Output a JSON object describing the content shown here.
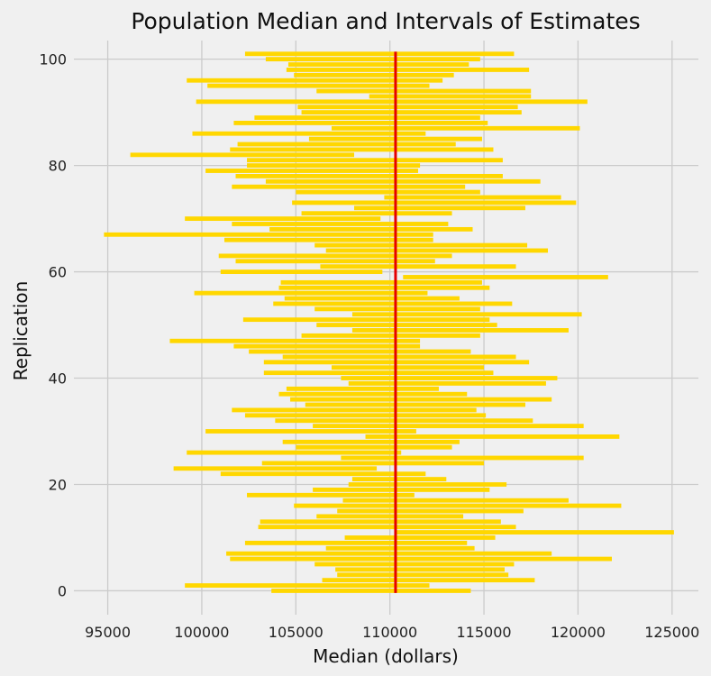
{
  "chart_data": {
    "type": "interval",
    "title": "Population Median and Intervals of Estimates",
    "xlabel": "Median (dollars)",
    "ylabel": "Replication",
    "xlim": [
      93200,
      126400
    ],
    "ylim": [
      -4.5,
      103.5
    ],
    "xticks": [
      95000,
      100000,
      105000,
      110000,
      115000,
      120000,
      125000
    ],
    "yticks": [
      0,
      20,
      40,
      60,
      80,
      100
    ],
    "grid": true,
    "population_median": 110300,
    "bar_color": "#ffd700",
    "line_color": "#e50000",
    "intervals": [
      [
        103700,
        114300
      ],
      [
        99100,
        112100
      ],
      [
        106400,
        117700
      ],
      [
        107200,
        116300
      ],
      [
        107100,
        116100
      ],
      [
        106000,
        116600
      ],
      [
        101500,
        121800
      ],
      [
        101300,
        118600
      ],
      [
        106600,
        114500
      ],
      [
        102300,
        114100
      ],
      [
        107600,
        115600
      ],
      [
        110300,
        125100
      ],
      [
        103000,
        116700
      ],
      [
        103100,
        115900
      ],
      [
        106100,
        113900
      ],
      [
        107200,
        117100
      ],
      [
        104900,
        122300
      ],
      [
        107500,
        119500
      ],
      [
        102400,
        111300
      ],
      [
        105900,
        115300
      ],
      [
        107800,
        116200
      ],
      [
        108000,
        113000
      ],
      [
        101000,
        111900
      ],
      [
        98500,
        109300
      ],
      [
        103200,
        115000
      ],
      [
        107400,
        120300
      ],
      [
        99200,
        110600
      ],
      [
        105000,
        113300
      ],
      [
        104300,
        113700
      ],
      [
        108700,
        122200
      ],
      [
        100200,
        111400
      ],
      [
        105900,
        120300
      ],
      [
        103900,
        117600
      ],
      [
        102300,
        115100
      ],
      [
        101600,
        114600
      ],
      [
        105500,
        117200
      ],
      [
        104700,
        118600
      ],
      [
        104100,
        114100
      ],
      [
        104500,
        112600
      ],
      [
        107800,
        118300
      ],
      [
        107400,
        118900
      ],
      [
        103300,
        115500
      ],
      [
        106900,
        115000
      ],
      [
        103300,
        117400
      ],
      [
        104300,
        116700
      ],
      [
        102500,
        114300
      ],
      [
        101700,
        111600
      ],
      [
        98300,
        111600
      ],
      [
        105300,
        114800
      ],
      [
        108000,
        119500
      ],
      [
        106100,
        115700
      ],
      [
        102200,
        115300
      ],
      [
        108000,
        120200
      ],
      [
        106000,
        114800
      ],
      [
        103800,
        116500
      ],
      [
        104400,
        113700
      ],
      [
        99600,
        112000
      ],
      [
        104100,
        115300
      ],
      [
        104200,
        114900
      ],
      [
        110700,
        121600
      ],
      [
        101000,
        109600
      ],
      [
        106300,
        116700
      ],
      [
        101800,
        112400
      ],
      [
        100900,
        113300
      ],
      [
        106600,
        118400
      ],
      [
        106000,
        117300
      ],
      [
        101200,
        112300
      ],
      [
        94800,
        112300
      ],
      [
        103600,
        114400
      ],
      [
        101600,
        113100
      ],
      [
        99100,
        109500
      ],
      [
        105300,
        113300
      ],
      [
        108100,
        117200
      ],
      [
        104800,
        119900
      ],
      [
        109700,
        119100
      ],
      [
        105000,
        114800
      ],
      [
        101600,
        114000
      ],
      [
        103400,
        118000
      ],
      [
        101800,
        116000
      ],
      [
        100200,
        111500
      ],
      [
        102400,
        111600
      ],
      [
        102400,
        116000
      ],
      [
        96200,
        108100
      ],
      [
        101500,
        115500
      ],
      [
        101900,
        113500
      ],
      [
        105700,
        114900
      ],
      [
        99500,
        111900
      ],
      [
        106900,
        120100
      ],
      [
        101700,
        115200
      ],
      [
        102800,
        114800
      ],
      [
        105300,
        117000
      ],
      [
        105100,
        116800
      ],
      [
        99700,
        120500
      ],
      [
        108900,
        117500
      ],
      [
        106100,
        117500
      ],
      [
        100300,
        112100
      ],
      [
        99200,
        112800
      ],
      [
        104900,
        113400
      ],
      [
        104500,
        117400
      ],
      [
        104600,
        114200
      ],
      [
        103400,
        114800
      ],
      [
        102300,
        116600
      ]
    ]
  }
}
